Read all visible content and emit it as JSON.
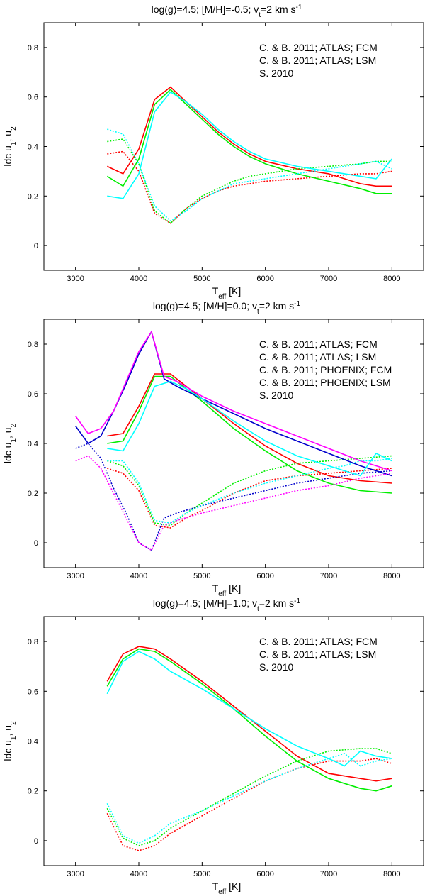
{
  "chart_data": [
    {
      "type": "line",
      "title": "log(g)=4.5; [M/H]=-0.5; v",
      "title_sub": "t",
      "title_end": "=2 km s",
      "title_sup": "-1",
      "xlabel_main": "T",
      "xlabel_sub": "eff",
      "xlabel_end": " [K]",
      "ylabel_main": "ldc u",
      "ylabel_sub1": "1",
      "ylabel_mid": ", u",
      "ylabel_sub2": "2",
      "xlim": [
        2500,
        8500
      ],
      "ylim": [
        -0.1,
        0.9
      ],
      "xticks": [
        "3000",
        "4000",
        "5000",
        "6000",
        "7000",
        "8000"
      ],
      "yticks": [
        "0",
        "0.2",
        "0.4",
        "0.6",
        "0.8"
      ],
      "legend_position": "top-right",
      "series": [
        {
          "name": "C. & B. 2011; ATLAS; FCM",
          "color": "#ff0000",
          "x": [
            3500,
            3750,
            4000,
            4250,
            4500,
            4750,
            5000,
            5250,
            5500,
            5750,
            6000,
            6500,
            7000,
            7500,
            7750,
            8000
          ],
          "u1": [
            0.32,
            0.29,
            0.39,
            0.59,
            0.64,
            0.58,
            0.52,
            0.46,
            0.41,
            0.37,
            0.34,
            0.31,
            0.29,
            0.25,
            0.24,
            0.24
          ],
          "u2": [
            0.37,
            0.38,
            0.3,
            0.13,
            0.09,
            0.15,
            0.19,
            0.22,
            0.24,
            0.25,
            0.26,
            0.27,
            0.28,
            0.29,
            0.29,
            0.3
          ]
        },
        {
          "name": "C. & B. 2011; ATLAS; LSM",
          "color": "#00ee00",
          "x": [
            3500,
            3750,
            4000,
            4250,
            4500,
            4750,
            5000,
            5250,
            5500,
            5750,
            6000,
            6500,
            7000,
            7500,
            7750,
            8000
          ],
          "u1": [
            0.28,
            0.24,
            0.35,
            0.57,
            0.63,
            0.57,
            0.51,
            0.45,
            0.4,
            0.36,
            0.33,
            0.29,
            0.26,
            0.23,
            0.21,
            0.21
          ],
          "u2": [
            0.42,
            0.43,
            0.33,
            0.14,
            0.09,
            0.15,
            0.2,
            0.23,
            0.26,
            0.28,
            0.29,
            0.31,
            0.32,
            0.33,
            0.34,
            0.34
          ]
        },
        {
          "name": "S. 2010",
          "color": "#00ffff",
          "x": [
            3500,
            3750,
            4000,
            4250,
            4500,
            4750,
            5000,
            5250,
            5500,
            5750,
            6000,
            6500,
            7000,
            7500,
            7750,
            8000
          ],
          "u1": [
            0.2,
            0.19,
            0.29,
            0.54,
            0.62,
            0.58,
            0.53,
            0.47,
            0.42,
            0.38,
            0.35,
            0.32,
            0.3,
            0.28,
            0.27,
            0.35
          ],
          "u2": [
            0.47,
            0.45,
            0.33,
            0.16,
            0.1,
            0.14,
            0.19,
            0.22,
            0.25,
            0.26,
            0.27,
            0.29,
            0.31,
            0.33,
            0.34,
            0.31
          ]
        }
      ]
    },
    {
      "type": "line",
      "title": "log(g)=4.5; [M/H]=0.0; v",
      "title_sub": "t",
      "title_end": "=2 km s",
      "title_sup": "-1",
      "xlabel_main": "T",
      "xlabel_sub": "eff",
      "xlabel_end": " [K]",
      "ylabel_main": "ldc u",
      "ylabel_sub1": "1",
      "ylabel_mid": ", u",
      "ylabel_sub2": "2",
      "xlim": [
        2500,
        8500
      ],
      "ylim": [
        -0.1,
        0.9
      ],
      "xticks": [
        "3000",
        "4000",
        "5000",
        "6000",
        "7000",
        "8000"
      ],
      "yticks": [
        "0",
        "0.2",
        "0.4",
        "0.6",
        "0.8"
      ],
      "legend_position": "top-right",
      "series": [
        {
          "name": "C. & B. 2011; ATLAS; FCM",
          "color": "#ff0000",
          "x": [
            3500,
            3750,
            4000,
            4250,
            4500,
            4750,
            5000,
            5500,
            6000,
            6500,
            7000,
            7500,
            8000
          ],
          "u1": [
            0.43,
            0.44,
            0.55,
            0.68,
            0.68,
            0.63,
            0.58,
            0.48,
            0.39,
            0.32,
            0.27,
            0.25,
            0.24
          ],
          "u2": [
            0.3,
            0.28,
            0.21,
            0.07,
            0.06,
            0.1,
            0.13,
            0.2,
            0.25,
            0.27,
            0.28,
            0.29,
            0.3
          ]
        },
        {
          "name": "C. & B. 2011; ATLAS; LSM",
          "color": "#00ee00",
          "x": [
            3500,
            3750,
            4000,
            4250,
            4500,
            4750,
            5000,
            5500,
            6000,
            6500,
            7000,
            7500,
            8000
          ],
          "u1": [
            0.4,
            0.41,
            0.53,
            0.67,
            0.67,
            0.62,
            0.57,
            0.46,
            0.37,
            0.29,
            0.24,
            0.21,
            0.2
          ],
          "u2": [
            0.33,
            0.31,
            0.23,
            0.08,
            0.07,
            0.12,
            0.16,
            0.24,
            0.29,
            0.32,
            0.33,
            0.34,
            0.35
          ]
        },
        {
          "name": "C. & B. 2011; PHOENIX; FCM",
          "color": "#0000cc",
          "x": [
            3000,
            3200,
            3400,
            3600,
            3800,
            4000,
            4200,
            4400,
            4600,
            5000,
            5500,
            6000,
            6500,
            7000,
            7500,
            8000
          ],
          "u1": [
            0.47,
            0.4,
            0.43,
            0.53,
            0.64,
            0.76,
            0.85,
            0.66,
            0.63,
            0.58,
            0.52,
            0.46,
            0.41,
            0.36,
            0.31,
            0.27
          ],
          "u2": [
            0.38,
            0.4,
            0.34,
            0.22,
            0.12,
            0.0,
            -0.03,
            0.1,
            0.12,
            0.15,
            0.18,
            0.21,
            0.24,
            0.26,
            0.28,
            0.29
          ]
        },
        {
          "name": "C. & B. 2011; PHOENIX; LSM",
          "color": "#ff00ff",
          "x": [
            3000,
            3200,
            3400,
            3600,
            3800,
            4000,
            4200,
            4400,
            4600,
            5000,
            5500,
            6000,
            6500,
            7000,
            7500,
            8000
          ],
          "u1": [
            0.51,
            0.44,
            0.46,
            0.53,
            0.65,
            0.77,
            0.85,
            0.67,
            0.65,
            0.59,
            0.53,
            0.48,
            0.43,
            0.38,
            0.33,
            0.29
          ],
          "u2": [
            0.33,
            0.35,
            0.3,
            0.2,
            0.1,
            0.0,
            -0.03,
            0.07,
            0.09,
            0.12,
            0.15,
            0.18,
            0.21,
            0.23,
            0.26,
            0.28
          ]
        },
        {
          "name": "S. 2010",
          "color": "#00ffff",
          "x": [
            3500,
            3750,
            4000,
            4250,
            4500,
            4750,
            5000,
            5500,
            6000,
            6500,
            7000,
            7250,
            7500,
            7750,
            8000
          ],
          "u1": [
            0.38,
            0.37,
            0.48,
            0.63,
            0.65,
            0.62,
            0.58,
            0.49,
            0.41,
            0.35,
            0.31,
            0.29,
            0.27,
            0.36,
            0.33
          ],
          "u2": [
            0.33,
            0.33,
            0.24,
            0.09,
            0.08,
            0.12,
            0.15,
            0.2,
            0.24,
            0.27,
            0.3,
            0.31,
            0.33,
            0.33,
            0.34
          ]
        }
      ]
    },
    {
      "type": "line",
      "title": "log(g)=4.5; [M/H]=1.0; v",
      "title_sub": "t",
      "title_end": "=2 km s",
      "title_sup": "-1",
      "xlabel_main": "T",
      "xlabel_sub": "eff",
      "xlabel_end": " [K]",
      "ylabel_main": "ldc u",
      "ylabel_sub1": "1",
      "ylabel_mid": ", u",
      "ylabel_sub2": "2",
      "xlim": [
        2500,
        8500
      ],
      "ylim": [
        -0.1,
        0.9
      ],
      "xticks": [
        "3000",
        "4000",
        "5000",
        "6000",
        "7000",
        "8000"
      ],
      "yticks": [
        "0",
        "0.2",
        "0.4",
        "0.6",
        "0.8"
      ],
      "legend_position": "top-right",
      "series": [
        {
          "name": "C. & B. 2011; ATLAS; FCM",
          "color": "#ff0000",
          "x": [
            3500,
            3750,
            4000,
            4250,
            4500,
            5000,
            5500,
            6000,
            6500,
            7000,
            7500,
            7750,
            8000
          ],
          "u1": [
            0.64,
            0.75,
            0.78,
            0.77,
            0.73,
            0.64,
            0.54,
            0.44,
            0.34,
            0.27,
            0.25,
            0.24,
            0.25
          ],
          "u2": [
            0.11,
            -0.02,
            -0.04,
            -0.02,
            0.03,
            0.1,
            0.17,
            0.24,
            0.29,
            0.32,
            0.32,
            0.33,
            0.31
          ]
        },
        {
          "name": "C. & B. 2011; ATLAS; LSM",
          "color": "#00ee00",
          "x": [
            3500,
            3750,
            4000,
            4250,
            4500,
            5000,
            5500,
            6000,
            6500,
            7000,
            7500,
            7750,
            8000
          ],
          "u1": [
            0.62,
            0.73,
            0.77,
            0.76,
            0.72,
            0.63,
            0.53,
            0.42,
            0.32,
            0.25,
            0.21,
            0.2,
            0.22
          ],
          "u2": [
            0.13,
            0.01,
            -0.02,
            0.0,
            0.05,
            0.12,
            0.19,
            0.26,
            0.32,
            0.36,
            0.37,
            0.37,
            0.35
          ]
        },
        {
          "name": "S. 2010",
          "color": "#00ffff",
          "x": [
            3500,
            3750,
            4000,
            4250,
            4500,
            5000,
            5500,
            6000,
            6500,
            7000,
            7250,
            7500,
            7750,
            8000
          ],
          "u1": [
            0.59,
            0.72,
            0.76,
            0.73,
            0.68,
            0.61,
            0.53,
            0.45,
            0.38,
            0.33,
            0.3,
            0.36,
            0.34,
            0.33
          ],
          "u2": [
            0.15,
            0.02,
            -0.01,
            0.02,
            0.07,
            0.12,
            0.18,
            0.24,
            0.29,
            0.33,
            0.35,
            0.3,
            0.32,
            0.33
          ]
        }
      ]
    }
  ]
}
